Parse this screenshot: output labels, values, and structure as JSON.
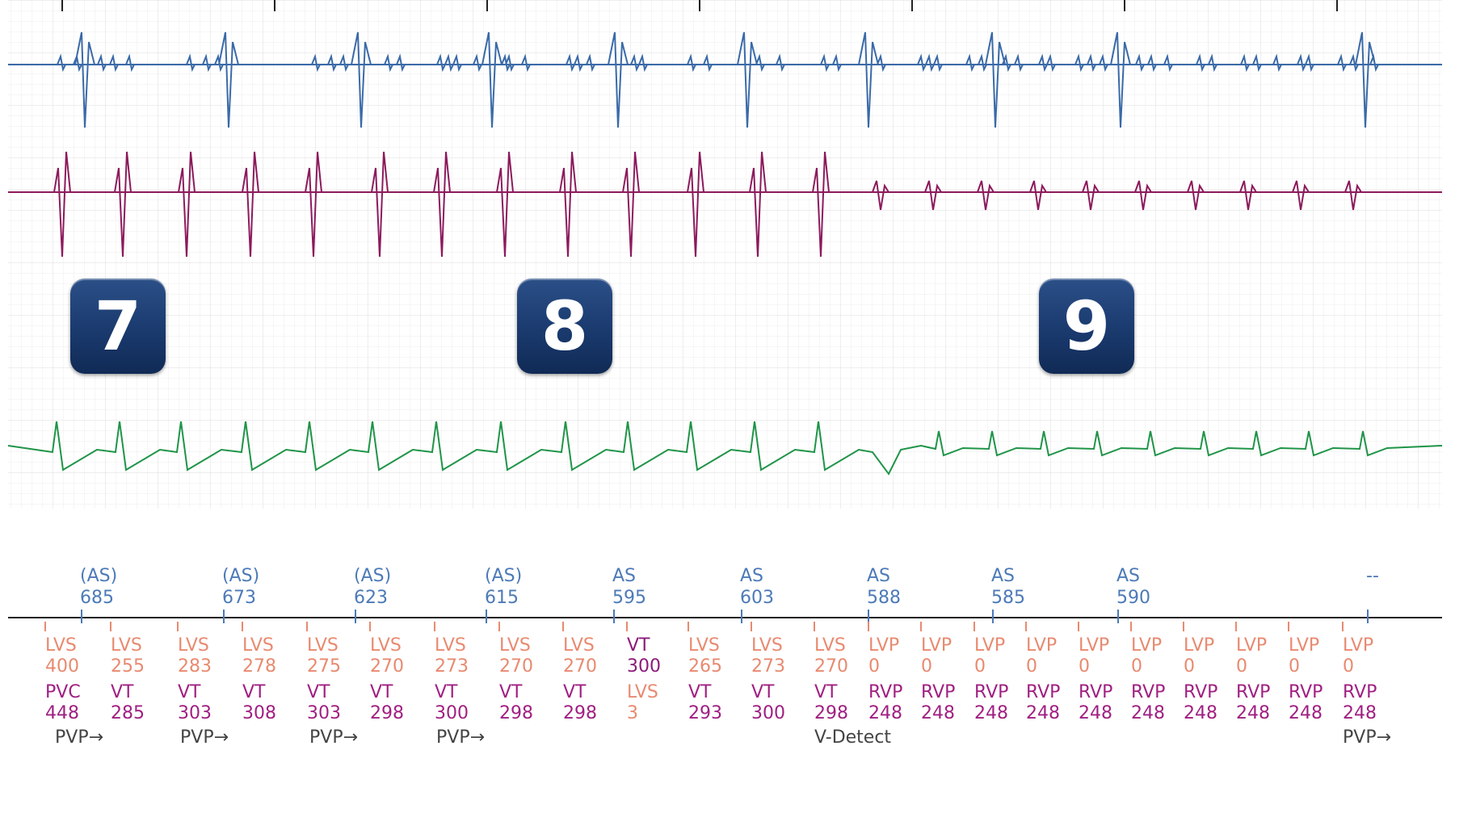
{
  "trace_colors": {
    "atrial": "#3a6aa8",
    "lv": "#8c1a5c",
    "surface": "#1f9448",
    "as_marker": "#4c7ab8",
    "lvs_marker": "#e88a70",
    "rv_marker": "#a01f82",
    "vt_marker": "#8c1a7a",
    "label_text": "#444444",
    "badge": "#1a3a6e"
  },
  "badges": [
    {
      "label": "7"
    },
    {
      "label": "8"
    },
    {
      "label": "9"
    }
  ],
  "atrial_markers": [
    {
      "line1": "(AS)",
      "line2": "685"
    },
    {
      "line1": "(AS)",
      "line2": "673"
    },
    {
      "line1": "(AS)",
      "line2": "623"
    },
    {
      "line1": "(AS)",
      "line2": "615"
    },
    {
      "line1": "AS",
      "line2": "595"
    },
    {
      "line1": "AS",
      "line2": "603"
    },
    {
      "line1": "AS",
      "line2": "588"
    },
    {
      "line1": "AS",
      "line2": "585"
    },
    {
      "line1": "AS",
      "line2": "590"
    },
    {
      "line1": "--",
      "line2": ""
    }
  ],
  "lv_markers": [
    {
      "label": "LVS",
      "value": "400"
    },
    {
      "label": "LVS",
      "value": "255"
    },
    {
      "label": "LVS",
      "value": "283"
    },
    {
      "label": "LVS",
      "value": "278"
    },
    {
      "label": "LVS",
      "value": "275"
    },
    {
      "label": "LVS",
      "value": "270"
    },
    {
      "label": "LVS",
      "value": "273"
    },
    {
      "label": "LVS",
      "value": "270"
    },
    {
      "label": "LVS",
      "value": "270"
    },
    {
      "label": "VT",
      "value": "300"
    },
    {
      "label": "LVS",
      "value": "265"
    },
    {
      "label": "LVS",
      "value": "273"
    },
    {
      "label": "LVS",
      "value": "270"
    },
    {
      "label": "LVP",
      "value": "0"
    },
    {
      "label": "LVP",
      "value": "0"
    },
    {
      "label": "LVP",
      "value": "0"
    },
    {
      "label": "LVP",
      "value": "0"
    },
    {
      "label": "LVP",
      "value": "0"
    },
    {
      "label": "LVP",
      "value": "0"
    },
    {
      "label": "LVP",
      "value": "0"
    },
    {
      "label": "LVP",
      "value": "0"
    },
    {
      "label": "LVP",
      "value": "0"
    },
    {
      "label": "LVP",
      "value": "0"
    }
  ],
  "rv_markers": [
    {
      "label": "PVC",
      "value": "448"
    },
    {
      "label": "VT",
      "value": "285"
    },
    {
      "label": "VT",
      "value": "303"
    },
    {
      "label": "VT",
      "value": "308"
    },
    {
      "label": "VT",
      "value": "303"
    },
    {
      "label": "VT",
      "value": "298"
    },
    {
      "label": "VT",
      "value": "300"
    },
    {
      "label": "VT",
      "value": "298"
    },
    {
      "label": "VT",
      "value": "298"
    },
    {
      "label": "LVS",
      "value": "3"
    },
    {
      "label": "VT",
      "value": "293"
    },
    {
      "label": "VT",
      "value": "300"
    },
    {
      "label": "VT",
      "value": "298"
    },
    {
      "label": "RVP",
      "value": "248"
    },
    {
      "label": "RVP",
      "value": "248"
    },
    {
      "label": "RVP",
      "value": "248"
    },
    {
      "label": "RVP",
      "value": "248"
    },
    {
      "label": "RVP",
      "value": "248"
    },
    {
      "label": "RVP",
      "value": "248"
    },
    {
      "label": "RVP",
      "value": "248"
    },
    {
      "label": "RVP",
      "value": "248"
    },
    {
      "label": "RVP",
      "value": "248"
    },
    {
      "label": "RVP",
      "value": "248"
    }
  ],
  "annotations": [
    {
      "text": "PVP→"
    },
    {
      "text": "PVP→"
    },
    {
      "text": "PVP→"
    },
    {
      "text": "PVP→"
    },
    {
      "text": "V-Detect"
    },
    {
      "text": "PVP→"
    }
  ]
}
